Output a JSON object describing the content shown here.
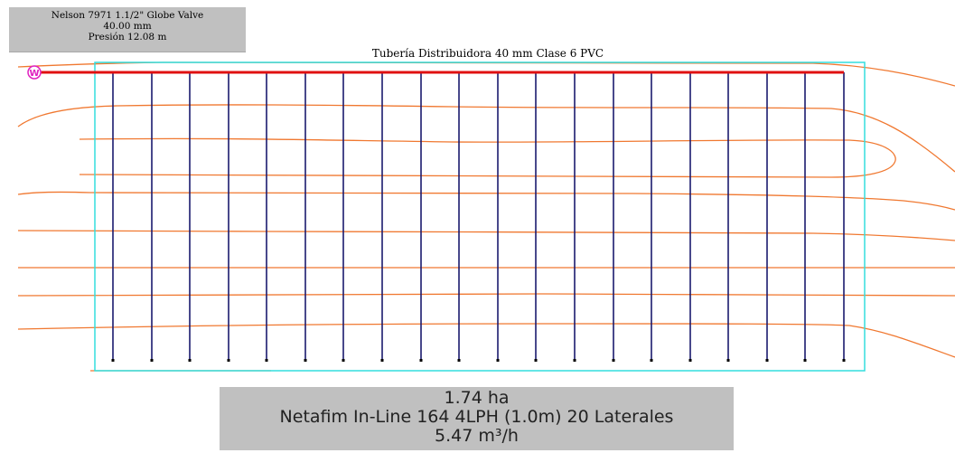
{
  "valve_info": {
    "model": "Nelson 7971 1.1/2\" Globe Valve",
    "size": "40.00 mm",
    "pressure": "Presión 12.08 m"
  },
  "distributor_pipe_label": "Tubería Distribuidora 40 mm Clase 6 PVC",
  "summary": {
    "area": "1.74 ha",
    "dripline": "Netafim In-Line 164 4LPH (1.0m) 20 Laterales",
    "flow": "5.47 m³/h"
  },
  "layout": {
    "lateral_count": 20,
    "valve_icon_letter": "W"
  },
  "colors": {
    "block_boundary": "#33dddd",
    "distributor_pipe": "#e01010",
    "laterals": "#1a1a6e",
    "contours": "#f07830",
    "valve_icon": "#e020c0",
    "label_background": "#c0c0c0"
  }
}
